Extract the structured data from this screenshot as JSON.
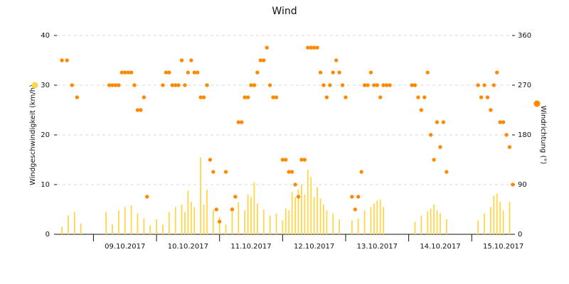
{
  "title": "Wind",
  "colors": {
    "speed": "#f5b81f",
    "speed_fill": "#ffd54a",
    "direction": "#ff8a00",
    "grid": "#d9d9d9",
    "axis": "#111111"
  },
  "chart_data": {
    "type": "bar",
    "title": "Wind",
    "xlabel": "",
    "grid": true,
    "legend": "axis-markers",
    "x_ticks": [
      "09.10.2017",
      "10.10.2017",
      "11.10.2017",
      "12.10.2017",
      "13.10.2017",
      "14.10.2017",
      "15.10.2017"
    ],
    "left_axis": {
      "label": "Windgeschwindigkeit (km/h)",
      "range": [
        0,
        40
      ],
      "ticks": [
        "0",
        "10",
        "20",
        "30",
        "40"
      ]
    },
    "right_axis": {
      "label": "Windrichtung (°)",
      "range": [
        0,
        360
      ],
      "ticks": [
        "0",
        "90",
        "180",
        "270",
        "360"
      ]
    },
    "series": [
      {
        "name": "Windgeschwindigkeit",
        "type": "bar",
        "axis": "left",
        "points": [
          [
            8.5,
            1.5
          ],
          [
            8.6,
            3.8
          ],
          [
            8.7,
            4.5
          ],
          [
            8.8,
            2.2
          ],
          [
            9.2,
            4.5
          ],
          [
            9.3,
            2.0
          ],
          [
            9.4,
            4.8
          ],
          [
            9.5,
            5.5
          ],
          [
            9.6,
            5.8
          ],
          [
            9.7,
            4.2
          ],
          [
            9.8,
            3.2
          ],
          [
            9.9,
            1.8
          ],
          [
            10.0,
            3.0
          ],
          [
            10.1,
            2.0
          ],
          [
            10.2,
            4.5
          ],
          [
            10.3,
            5.5
          ],
          [
            10.4,
            6.0
          ],
          [
            10.45,
            4.5
          ],
          [
            10.5,
            8.8
          ],
          [
            10.55,
            6.5
          ],
          [
            10.6,
            5.5
          ],
          [
            10.7,
            15.5
          ],
          [
            10.75,
            6.0
          ],
          [
            10.8,
            9.0
          ],
          [
            10.9,
            5.0
          ],
          [
            11.0,
            3.5
          ],
          [
            11.1,
            2.0
          ],
          [
            11.2,
            5.5
          ],
          [
            11.3,
            6.5
          ],
          [
            11.4,
            4.8
          ],
          [
            11.45,
            8.0
          ],
          [
            11.5,
            7.5
          ],
          [
            11.55,
            10.5
          ],
          [
            11.6,
            6.2
          ],
          [
            11.7,
            5.0
          ],
          [
            11.8,
            3.8
          ],
          [
            11.9,
            4.2
          ],
          [
            12.0,
            2.8
          ],
          [
            12.05,
            5.2
          ],
          [
            12.1,
            4.8
          ],
          [
            12.15,
            8.5
          ],
          [
            12.2,
            7.5
          ],
          [
            12.25,
            9.0
          ],
          [
            12.3,
            10.0
          ],
          [
            12.35,
            8.0
          ],
          [
            12.4,
            13.0
          ],
          [
            12.45,
            11.5
          ],
          [
            12.5,
            7.5
          ],
          [
            12.55,
            9.5
          ],
          [
            12.6,
            7.2
          ],
          [
            12.65,
            6.0
          ],
          [
            12.7,
            4.8
          ],
          [
            12.8,
            4.2
          ],
          [
            12.9,
            3.0
          ],
          [
            13.1,
            2.8
          ],
          [
            13.2,
            3.2
          ],
          [
            13.3,
            4.8
          ],
          [
            13.4,
            5.5
          ],
          [
            13.45,
            6.2
          ],
          [
            13.5,
            6.8
          ],
          [
            13.55,
            7.0
          ],
          [
            13.6,
            5.5
          ],
          [
            14.1,
            2.5
          ],
          [
            14.2,
            3.8
          ],
          [
            14.3,
            4.6
          ],
          [
            14.35,
            5.2
          ],
          [
            14.4,
            6.0
          ],
          [
            14.45,
            4.8
          ],
          [
            14.5,
            4.2
          ],
          [
            14.6,
            3.0
          ],
          [
            15.1,
            2.8
          ],
          [
            15.2,
            4.2
          ],
          [
            15.3,
            5.5
          ],
          [
            15.35,
            7.8
          ],
          [
            15.4,
            8.2
          ],
          [
            15.45,
            6.5
          ],
          [
            15.5,
            4.8
          ],
          [
            15.6,
            6.5
          ]
        ]
      },
      {
        "name": "Windrichtung",
        "type": "scatter",
        "axis": "right",
        "points": [
          [
            8.5,
            315
          ],
          [
            8.58,
            315
          ],
          [
            8.66,
            270
          ],
          [
            8.74,
            248
          ],
          [
            9.25,
            270
          ],
          [
            9.3,
            270
          ],
          [
            9.35,
            270
          ],
          [
            9.4,
            270
          ],
          [
            9.45,
            293
          ],
          [
            9.5,
            293
          ],
          [
            9.55,
            293
          ],
          [
            9.6,
            293
          ],
          [
            9.65,
            270
          ],
          [
            9.7,
            225
          ],
          [
            9.75,
            225
          ],
          [
            9.8,
            248
          ],
          [
            9.85,
            68
          ],
          [
            10.1,
            270
          ],
          [
            10.15,
            293
          ],
          [
            10.2,
            293
          ],
          [
            10.25,
            270
          ],
          [
            10.3,
            270
          ],
          [
            10.35,
            270
          ],
          [
            10.4,
            315
          ],
          [
            10.45,
            270
          ],
          [
            10.5,
            293
          ],
          [
            10.55,
            315
          ],
          [
            10.6,
            293
          ],
          [
            10.65,
            293
          ],
          [
            10.7,
            248
          ],
          [
            10.75,
            248
          ],
          [
            10.8,
            270
          ],
          [
            10.85,
            135
          ],
          [
            10.9,
            113
          ],
          [
            10.95,
            45
          ],
          [
            11.0,
            23
          ],
          [
            11.1,
            113
          ],
          [
            11.2,
            45
          ],
          [
            11.25,
            68
          ],
          [
            11.3,
            203
          ],
          [
            11.35,
            203
          ],
          [
            11.4,
            248
          ],
          [
            11.45,
            248
          ],
          [
            11.5,
            270
          ],
          [
            11.55,
            270
          ],
          [
            11.6,
            293
          ],
          [
            11.65,
            315
          ],
          [
            11.7,
            315
          ],
          [
            11.75,
            338
          ],
          [
            11.8,
            270
          ],
          [
            11.85,
            248
          ],
          [
            11.9,
            248
          ],
          [
            12.0,
            135
          ],
          [
            12.05,
            135
          ],
          [
            12.1,
            113
          ],
          [
            12.15,
            113
          ],
          [
            12.2,
            90
          ],
          [
            12.25,
            68
          ],
          [
            12.3,
            135
          ],
          [
            12.35,
            135
          ],
          [
            12.4,
            338
          ],
          [
            12.45,
            338
          ],
          [
            12.5,
            338
          ],
          [
            12.55,
            338
          ],
          [
            12.6,
            293
          ],
          [
            12.65,
            270
          ],
          [
            12.7,
            248
          ],
          [
            12.75,
            270
          ],
          [
            12.8,
            293
          ],
          [
            12.85,
            315
          ],
          [
            12.9,
            293
          ],
          [
            12.95,
            270
          ],
          [
            13.0,
            248
          ],
          [
            13.1,
            68
          ],
          [
            13.15,
            45
          ],
          [
            13.2,
            68
          ],
          [
            13.25,
            113
          ],
          [
            13.3,
            270
          ],
          [
            13.35,
            270
          ],
          [
            13.4,
            293
          ],
          [
            13.45,
            270
          ],
          [
            13.5,
            270
          ],
          [
            13.55,
            248
          ],
          [
            13.6,
            270
          ],
          [
            13.65,
            270
          ],
          [
            13.7,
            270
          ],
          [
            14.05,
            270
          ],
          [
            14.1,
            270
          ],
          [
            14.15,
            248
          ],
          [
            14.2,
            225
          ],
          [
            14.25,
            248
          ],
          [
            14.3,
            293
          ],
          [
            14.35,
            180
          ],
          [
            14.4,
            135
          ],
          [
            14.45,
            203
          ],
          [
            14.5,
            158
          ],
          [
            14.55,
            203
          ],
          [
            14.6,
            113
          ],
          [
            15.1,
            270
          ],
          [
            15.15,
            248
          ],
          [
            15.2,
            270
          ],
          [
            15.25,
            248
          ],
          [
            15.3,
            225
          ],
          [
            15.35,
            270
          ],
          [
            15.4,
            293
          ],
          [
            15.45,
            203
          ],
          [
            15.5,
            203
          ],
          [
            15.55,
            180
          ],
          [
            15.6,
            158
          ],
          [
            15.65,
            90
          ]
        ]
      }
    ]
  }
}
